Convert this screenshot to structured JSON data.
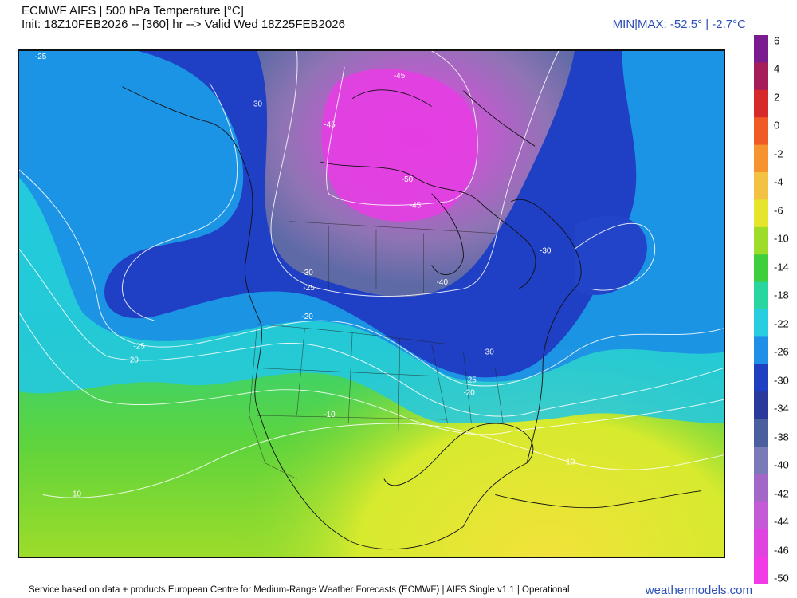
{
  "header": {
    "title": "ECMWF AIFS | 500 hPa Temperature [°C]",
    "subtitle": "Init: 18Z10FEB2026 -- [360] hr --> Valid Wed 18Z25FEB2026",
    "minmax": "MIN|MAX: -52.5° | -2.7°C"
  },
  "colorbar": {
    "ticks": [
      "6",
      "4",
      "2",
      "0",
      "-2",
      "-4",
      "-6",
      "-10",
      "-14",
      "-18",
      "-22",
      "-26",
      "-30",
      "-34",
      "-38",
      "-40",
      "-42",
      "-44",
      "-46",
      "-50"
    ],
    "colors": [
      "#7a1b8f",
      "#a61d5c",
      "#d62a2a",
      "#ef5b24",
      "#f7932e",
      "#f3c243",
      "#e6e52c",
      "#9ddc28",
      "#3fcf3c",
      "#2ad6a0",
      "#28cde0",
      "#1f8fe8",
      "#1e3fc2",
      "#2a3a9a",
      "#4b5f9e",
      "#7a7ab8",
      "#a267c7",
      "#c55ad7",
      "#df44e0",
      "#f03be6"
    ]
  },
  "map": {
    "contour_labels": [
      "-25",
      "-30",
      "-45",
      "-45",
      "-50",
      "-45",
      "-30",
      "-30",
      "-25",
      "-20",
      "-40",
      "-25",
      "-20",
      "-30",
      "-25",
      "-20",
      "-10",
      "-10",
      "-10"
    ]
  },
  "footer": {
    "credit": "Service based on data + products European Centre for Medium-Range Weather Forecasts (ECMWF) | AIFS Single v1.1 | Operational",
    "brand": "weathermodels.com"
  }
}
